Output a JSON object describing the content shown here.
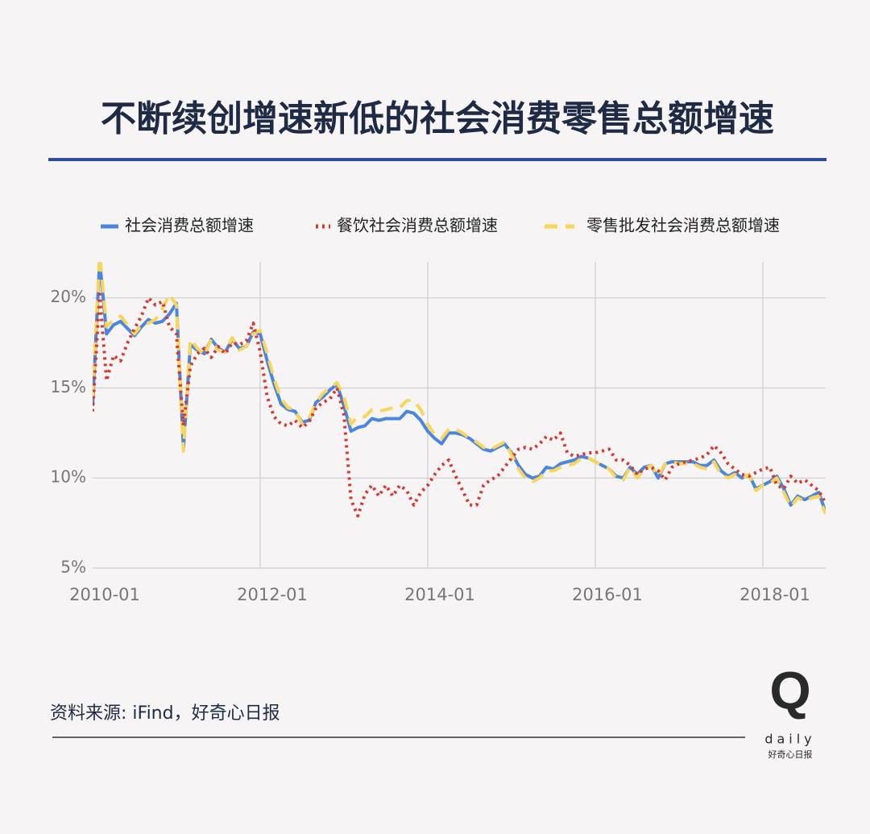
{
  "chart_data": {
    "type": "line",
    "title": "不断续创增速新低的社会消费零售总额增速",
    "source": "资料来源: iFind，好奇心日报",
    "logo": {
      "mark": "Q",
      "word": "daily",
      "name": "好奇心日报"
    },
    "categories": [
      "2010-01",
      null,
      null,
      null,
      null,
      null,
      null,
      null,
      null,
      null,
      null,
      null,
      null,
      null,
      null,
      null,
      null,
      null,
      null,
      null,
      null,
      null,
      null,
      null,
      "2012-01",
      null,
      null,
      null,
      null,
      null,
      null,
      null,
      null,
      null,
      null,
      null,
      null,
      null,
      null,
      null,
      null,
      null,
      null,
      null,
      null,
      null,
      null,
      null,
      "2014-01",
      null,
      null,
      null,
      null,
      null,
      null,
      null,
      null,
      null,
      null,
      null,
      null,
      null,
      null,
      null,
      null,
      null,
      null,
      null,
      null,
      null,
      null,
      null,
      "2016-01",
      null,
      null,
      null,
      null,
      null,
      null,
      null,
      null,
      null,
      null,
      null,
      null,
      null,
      null,
      null,
      null,
      null,
      null,
      null,
      null,
      null,
      null,
      null,
      "2018-01",
      null,
      null,
      null,
      null,
      null,
      null,
      null,
      null,
      null
    ],
    "ylim": [
      5,
      22
    ],
    "yticks": [
      {
        "value": 5,
        "label": "5%"
      },
      {
        "value": 10,
        "label": "10%"
      },
      {
        "value": 15,
        "label": "15%"
      },
      {
        "value": 20,
        "label": "20%"
      }
    ],
    "grid": true,
    "legend": "top",
    "series": [
      {
        "name": "社会消费总额增速",
        "color": "#4a86e0",
        "style": "solid",
        "values": [
          14.0,
          22.1,
          18.0,
          18.5,
          18.7,
          18.3,
          17.9,
          18.4,
          18.8,
          18.6,
          18.7,
          19.1,
          19.7,
          11.6,
          17.4,
          17.1,
          16.9,
          17.7,
          17.2,
          17.0,
          17.7,
          17.2,
          17.3,
          18.1,
          18.0,
          16.5,
          15.2,
          14.1,
          13.8,
          13.7,
          13.1,
          13.2,
          14.2,
          14.5,
          14.9,
          15.2,
          14.0,
          12.6,
          12.8,
          12.9,
          13.3,
          13.2,
          13.3,
          13.3,
          13.3,
          13.7,
          13.6,
          13.2,
          12.6,
          12.2,
          11.9,
          12.5,
          12.5,
          12.4,
          12.2,
          11.9,
          11.6,
          11.5,
          11.7,
          11.9,
          11.4,
          10.7,
          10.2,
          10.0,
          10.1,
          10.6,
          10.5,
          10.8,
          10.9,
          11.0,
          11.2,
          11.1,
          10.9,
          10.7,
          10.5,
          10.1,
          10.0,
          10.6,
          10.2,
          10.6,
          10.7,
          10.0,
          10.8,
          10.9,
          10.9,
          10.9,
          10.9,
          10.7,
          10.7,
          11.0,
          10.4,
          10.1,
          10.3,
          10.0,
          10.2,
          9.4,
          9.6,
          9.8,
          10.1,
          9.4,
          8.5,
          9.0,
          8.8,
          9.0,
          9.2,
          8.1
        ]
      },
      {
        "name": "餐饮社会消费总额增速",
        "color": "#d63a2f",
        "style": "dotted",
        "values": [
          13.7,
          20.2,
          15.4,
          16.8,
          16.5,
          17.5,
          18.3,
          19.0,
          20.0,
          19.6,
          19.8,
          18.4,
          18.0,
          12.9,
          16.2,
          16.9,
          17.2,
          16.7,
          17.3,
          16.9,
          17.5,
          17.4,
          17.6,
          18.6,
          17.0,
          14.5,
          13.4,
          13.0,
          12.9,
          13.2,
          12.8,
          13.1,
          13.9,
          14.2,
          14.4,
          15.0,
          13.5,
          8.8,
          7.9,
          9.1,
          9.6,
          9.0,
          9.6,
          9.0,
          9.6,
          9.3,
          8.5,
          9.2,
          9.6,
          10.2,
          10.7,
          11.0,
          10.1,
          9.3,
          8.5,
          8.5,
          9.6,
          9.9,
          10.1,
          10.6,
          11.1,
          11.6,
          11.7,
          11.6,
          11.9,
          12.3,
          12.1,
          12.5,
          11.4,
          11.2,
          11.3,
          11.4,
          11.4,
          11.5,
          11.6,
          11.0,
          11.0,
          10.7,
          10.2,
          10.5,
          10.6,
          10.4,
          9.9,
          10.6,
          10.8,
          10.9,
          11.0,
          11.1,
          11.3,
          11.8,
          11.4,
          10.8,
          10.5,
          10.2,
          10.1,
          10.3,
          10.5,
          10.6,
          9.6,
          9.4,
          10.1,
          9.7,
          9.9,
          9.6,
          9.3,
          8.6
        ]
      },
      {
        "name": "零售批发社会消费总额增速",
        "color": "#f9d55a",
        "style": "dashed",
        "values": [
          14.5,
          22.4,
          18.4,
          18.8,
          19.0,
          18.5,
          18.0,
          18.5,
          18.6,
          18.8,
          19.4,
          20.2,
          19.6,
          11.5,
          17.7,
          17.2,
          16.8,
          17.7,
          17.1,
          17.0,
          17.8,
          17.1,
          17.3,
          18.0,
          18.2,
          16.9,
          15.5,
          14.4,
          13.9,
          13.8,
          13.0,
          13.3,
          14.2,
          14.7,
          15.0,
          15.3,
          14.5,
          13.0,
          13.4,
          13.4,
          13.8,
          13.7,
          13.8,
          13.9,
          13.9,
          14.3,
          14.3,
          13.8,
          13.0,
          12.4,
          12.2,
          12.7,
          12.7,
          12.5,
          12.2,
          12.0,
          11.7,
          11.6,
          11.8,
          12.0,
          11.3,
          10.5,
          10.0,
          9.8,
          10.0,
          10.4,
          10.4,
          10.6,
          10.7,
          10.8,
          11.1,
          11.1,
          10.9,
          10.7,
          10.5,
          10.0,
          9.9,
          10.6,
          10.0,
          10.5,
          10.7,
          10.1,
          10.8,
          10.9,
          10.8,
          10.8,
          10.8,
          10.6,
          10.5,
          10.9,
          10.2,
          10.0,
          10.2,
          10.0,
          10.2,
          9.3,
          9.6,
          9.7,
          10.0,
          9.2,
          8.4,
          8.9,
          8.7,
          8.9,
          9.0,
          8.0
        ]
      }
    ]
  }
}
